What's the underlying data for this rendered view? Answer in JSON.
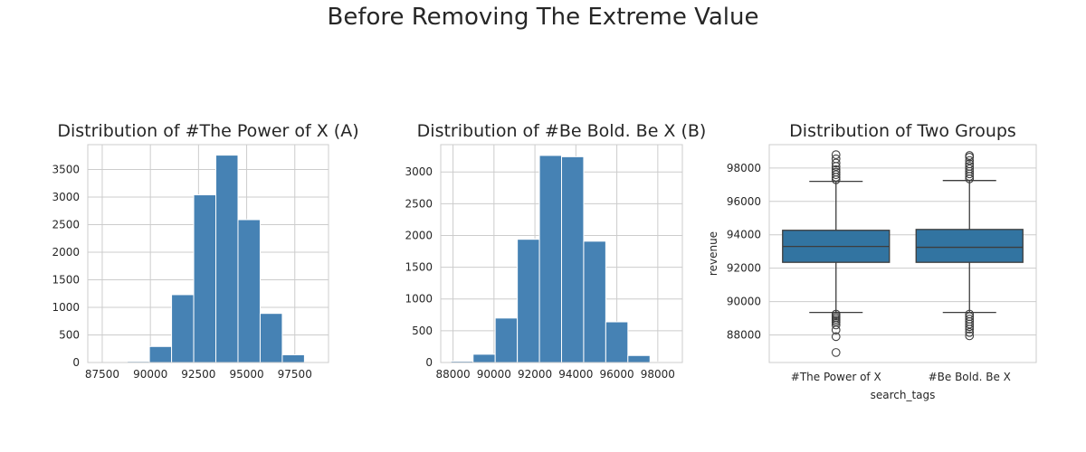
{
  "figure": {
    "title": "Before Removing The Extreme Value"
  },
  "style": {
    "bar_color": "#4682b4",
    "box_color": "#3274a1",
    "grid_color": "#cccccc",
    "axis_color": "#cccccc",
    "text_color": "#262626"
  },
  "chart_data": [
    {
      "type": "bar",
      "title": "Distribution of #The Power of X (A)",
      "xlabel": "",
      "ylabel": "",
      "bins": [
        {
          "x0": 87650,
          "x1": 88800,
          "count": 3
        },
        {
          "x0": 88800,
          "x1": 89950,
          "count": 20
        },
        {
          "x0": 89950,
          "x1": 91100,
          "count": 290
        },
        {
          "x0": 91100,
          "x1": 92250,
          "count": 1230
        },
        {
          "x0": 92250,
          "x1": 93400,
          "count": 3040
        },
        {
          "x0": 93400,
          "x1": 94550,
          "count": 3760
        },
        {
          "x0": 94550,
          "x1": 95700,
          "count": 2590
        },
        {
          "x0": 95700,
          "x1": 96850,
          "count": 890
        },
        {
          "x0": 96850,
          "x1": 98000,
          "count": 140
        },
        {
          "x0": 98000,
          "x1": 99150,
          "count": 10
        }
      ],
      "xlim": [
        86750,
        99250
      ],
      "ylim": [
        0,
        3950
      ],
      "xticks": [
        87500,
        90000,
        92500,
        95000,
        97500
      ],
      "xtick_labels": [
        "87500",
        "90000",
        "92500",
        "95000",
        "97500"
      ],
      "yticks": [
        0,
        500,
        1000,
        1500,
        2000,
        2500,
        3000,
        3500
      ],
      "ytick_labels": [
        "0",
        "500",
        "1000",
        "1500",
        "2000",
        "2500",
        "3000",
        "3500"
      ]
    },
    {
      "type": "bar",
      "title": "Distribution of #Be Bold. Be X (B)",
      "xlabel": "",
      "ylabel": "",
      "bins": [
        {
          "x0": 87900,
          "x1": 88980,
          "count": 20
        },
        {
          "x0": 88980,
          "x1": 90060,
          "count": 130
        },
        {
          "x0": 90060,
          "x1": 91140,
          "count": 700
        },
        {
          "x0": 91140,
          "x1": 92220,
          "count": 1940
        },
        {
          "x0": 92220,
          "x1": 93300,
          "count": 3260
        },
        {
          "x0": 93300,
          "x1": 94380,
          "count": 3240
        },
        {
          "x0": 94380,
          "x1": 95460,
          "count": 1910
        },
        {
          "x0": 95460,
          "x1": 96540,
          "count": 640
        },
        {
          "x0": 96540,
          "x1": 97620,
          "count": 110
        },
        {
          "x0": 97620,
          "x1": 98700,
          "count": 10
        }
      ],
      "xlim": [
        87400,
        99200
      ],
      "ylim": [
        0,
        3430
      ],
      "xticks": [
        88000,
        90000,
        92000,
        94000,
        96000,
        98000
      ],
      "xtick_labels": [
        "88000",
        "90000",
        "92000",
        "94000",
        "96000",
        "98000"
      ],
      "yticks": [
        0,
        500,
        1000,
        1500,
        2000,
        2500,
        3000
      ],
      "ytick_labels": [
        "0",
        "500",
        "1000",
        "1500",
        "2000",
        "2500",
        "3000"
      ]
    },
    {
      "type": "box",
      "title": "Distribution of Two Groups",
      "xlabel": "search_tags",
      "ylabel": "revenue",
      "categories": [
        "#The Power of X",
        "#Be Bold. Be X"
      ],
      "boxes": [
        {
          "whislo": 89350,
          "q1": 92350,
          "med": 93300,
          "q3": 94270,
          "whishi": 97200,
          "fliers": [
            86950,
            87900,
            88300,
            88600,
            88750,
            88850,
            88950,
            89050,
            89150,
            89250,
            97300,
            97450,
            97600,
            97750,
            97900,
            98100,
            98300,
            98550,
            98800
          ]
        },
        {
          "whislo": 89350,
          "q1": 92350,
          "med": 93250,
          "q3": 94320,
          "whishi": 97250,
          "fliers": [
            87950,
            88150,
            88350,
            88500,
            88650,
            88800,
            88950,
            89100,
            89250,
            97350,
            97500,
            97650,
            97800,
            97950,
            98100,
            98250,
            98450,
            98650,
            98750
          ]
        }
      ],
      "ylim": [
        86350,
        99400
      ],
      "yticks": [
        88000,
        90000,
        92000,
        94000,
        96000,
        98000
      ],
      "ytick_labels": [
        "88000",
        "90000",
        "92000",
        "94000",
        "96000",
        "98000"
      ]
    }
  ]
}
